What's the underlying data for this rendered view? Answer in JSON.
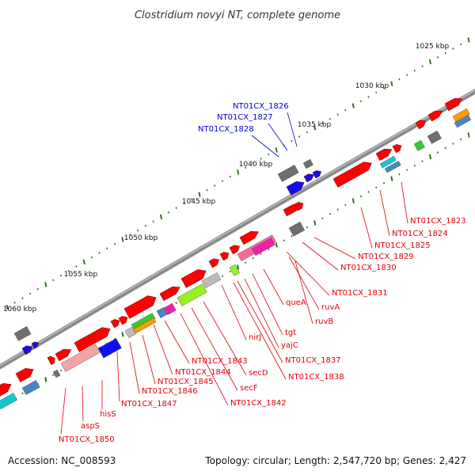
{
  "title": "Clostridium novyi NT, complete genome",
  "accession": "Accession: NC_008593",
  "summary": "Topology: circular; Length: 2,547,720 bp; Genes: 2,427",
  "colors": {
    "backbone": "#8a8a8a",
    "gene_red": "#ff0000",
    "label_red": "#e0000a",
    "label_blue": "#0000e0",
    "tick_green": "#2a7a1a",
    "gray": "#6e6e6e",
    "blue": "#1010ee",
    "green": "#36c936",
    "cyan": "#12c8d0",
    "steel": "#4a86c0",
    "orange": "#ff9a00",
    "pink": "#f86a9a",
    "magenta": "#ee22aa",
    "lime": "#9aee22",
    "silver": "#bbbbbb",
    "salmon": "#f4a4a4",
    "olive": "#6a9a20"
  },
  "ruler": [
    {
      "label": "1025 kbp"
    },
    {
      "label": "1030 kbp"
    },
    {
      "label": "1035 kbp"
    },
    {
      "label": "1040 kbp"
    },
    {
      "label": "1045 kbp"
    },
    {
      "label": "1050 kbp"
    },
    {
      "label": "1055 kbp"
    },
    {
      "label": "1060 kbp"
    }
  ],
  "labels_above": [
    {
      "text": "NT01CX_1826"
    },
    {
      "text": "NT01CX_1827"
    },
    {
      "text": "NT01CX_1828"
    }
  ],
  "labels_below": [
    {
      "text": "NT01CX_1823"
    },
    {
      "text": "NT01CX_1824"
    },
    {
      "text": "NT01CX_1825"
    },
    {
      "text": "NT01CX_1829"
    },
    {
      "text": "NT01CX_1830"
    },
    {
      "text": "NT01CX_1831"
    },
    {
      "text": "queA"
    },
    {
      "text": "ruvA"
    },
    {
      "text": "ruvB"
    },
    {
      "text": "tgt"
    },
    {
      "text": "yajC"
    },
    {
      "text": "nirJ"
    },
    {
      "text": "NT01CX_1837"
    },
    {
      "text": "NT01CX_1838"
    },
    {
      "text": "secD"
    },
    {
      "text": "secF"
    },
    {
      "text": "NT01CX_1842"
    },
    {
      "text": "NT01CX_1843"
    },
    {
      "text": "NT01CX_1844"
    },
    {
      "text": "NT01CX_1845"
    },
    {
      "text": "NT01CX_1846"
    },
    {
      "text": "NT01CX_1847"
    },
    {
      "text": "hisS"
    },
    {
      "text": "aspS"
    },
    {
      "text": "NT01CX_1850"
    }
  ]
}
